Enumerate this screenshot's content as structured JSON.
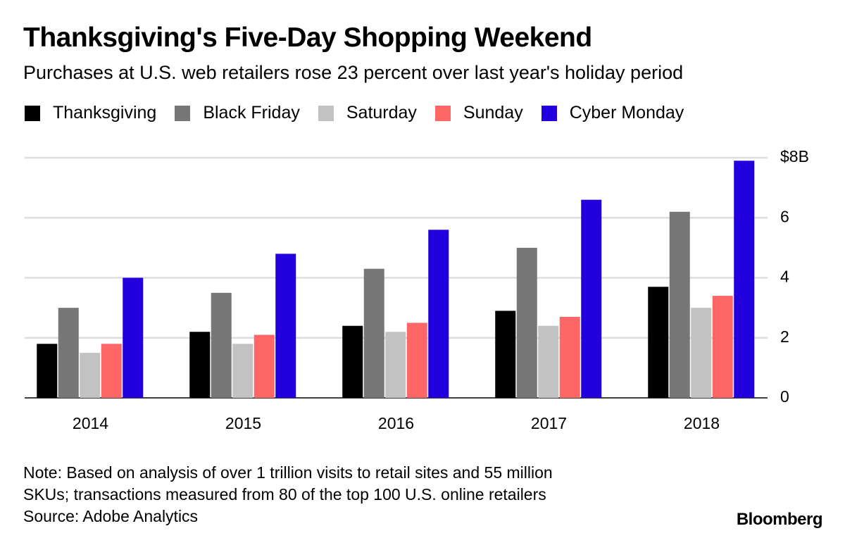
{
  "chart_data": {
    "type": "bar",
    "title": "Thanksgiving's Five-Day Shopping Weekend",
    "subtitle": "Purchases at U.S. web retailers rose 23 percent over last year's holiday period",
    "categories": [
      "2014",
      "2015",
      "2016",
      "2017",
      "2018"
    ],
    "series": [
      {
        "name": "Thanksgiving",
        "color": "#000000",
        "values": [
          1.8,
          2.2,
          2.4,
          2.9,
          3.7
        ]
      },
      {
        "name": "Black Friday",
        "color": "#777777",
        "values": [
          3.0,
          3.5,
          4.3,
          5.0,
          6.2
        ]
      },
      {
        "name": "Saturday",
        "color": "#c2c2c2",
        "values": [
          1.5,
          1.8,
          2.2,
          2.4,
          3.0
        ]
      },
      {
        "name": "Sunday",
        "color": "#ff6666",
        "values": [
          1.8,
          2.1,
          2.5,
          2.7,
          3.4
        ]
      },
      {
        "name": "Cyber Monday",
        "color": "#2200dd",
        "values": [
          4.0,
          4.8,
          5.6,
          6.6,
          7.9
        ]
      }
    ],
    "ylim": [
      0,
      8
    ],
    "yticks": [
      0,
      2,
      4,
      6,
      {
        "value": 8,
        "label": "$8B"
      }
    ],
    "grid": true,
    "note": [
      "Note: Based on analysis of over 1 trillion visits to retail sites and 55 million",
      "SKUs; transactions measured from 80 of the top 100 U.S. online retailers"
    ],
    "source": "Source: Adobe Analytics",
    "brand": "Bloomberg"
  }
}
